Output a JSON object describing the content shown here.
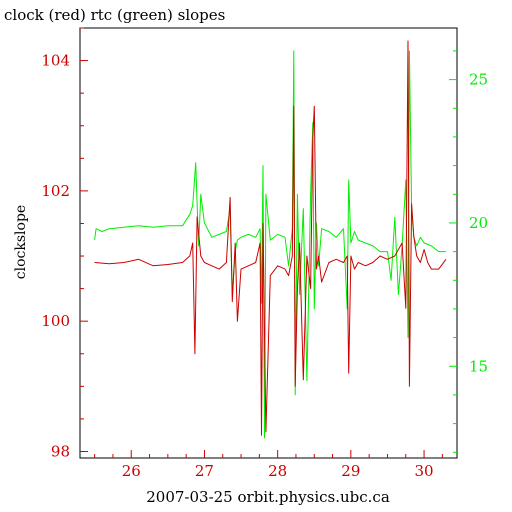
{
  "chart_data": {
    "type": "line",
    "title": "clock (red) rtc (green) slopes",
    "xlabel": "2007-03-25 orbit.physics.ubc.ca",
    "ylabel": "clockslope",
    "xlim": [
      25.3,
      30.45
    ],
    "ylim_left": [
      97.9,
      104.5
    ],
    "ylim_right": [
      11.8,
      26.8
    ],
    "x_ticks": [
      26,
      27,
      28,
      29,
      30
    ],
    "y_ticks_left": [
      98,
      100,
      102,
      104
    ],
    "y_ticks_right": [
      15,
      20,
      25
    ],
    "colors": {
      "clock": "#cc0000",
      "rtc": "#00ee00",
      "axes": "#000000"
    },
    "grid": false,
    "series": [
      {
        "name": "clock",
        "axis": "left",
        "color": "#cc0000",
        "x": [
          25.5,
          25.7,
          25.9,
          26.1,
          26.3,
          26.5,
          26.7,
          26.8,
          26.84,
          26.87,
          26.9,
          26.95,
          27.0,
          27.1,
          27.2,
          27.3,
          27.35,
          27.38,
          27.42,
          27.45,
          27.5,
          27.6,
          27.7,
          27.76,
          27.78,
          27.8,
          27.84,
          27.9,
          28.0,
          28.1,
          28.15,
          28.2,
          28.22,
          28.24,
          28.27,
          28.3,
          28.35,
          28.4,
          28.45,
          28.48,
          28.5,
          28.53,
          28.56,
          28.6,
          28.7,
          28.8,
          28.9,
          28.95,
          28.97,
          29.0,
          29.05,
          29.1,
          29.2,
          29.3,
          29.4,
          29.5,
          29.6,
          29.7,
          29.75,
          29.78,
          29.8,
          29.83,
          29.86,
          29.9,
          29.95,
          30.0,
          30.05,
          30.1,
          30.2,
          30.3
        ],
        "y": [
          100.9,
          100.88,
          100.9,
          100.95,
          100.85,
          100.87,
          100.9,
          101.0,
          101.2,
          99.5,
          101.6,
          101.0,
          100.9,
          100.85,
          100.8,
          100.9,
          101.9,
          100.3,
          101.2,
          100.0,
          100.8,
          100.85,
          100.9,
          101.2,
          98.25,
          101.5,
          98.3,
          100.7,
          100.85,
          100.8,
          100.7,
          101.0,
          103.3,
          99.0,
          100.5,
          101.2,
          99.1,
          101.0,
          100.5,
          102.8,
          103.3,
          100.8,
          101.0,
          100.6,
          100.9,
          100.95,
          100.9,
          101.0,
          99.2,
          101.0,
          100.8,
          100.9,
          100.85,
          100.9,
          101.0,
          100.95,
          101.0,
          101.2,
          100.2,
          104.3,
          99.0,
          101.8,
          101.3,
          101.0,
          100.9,
          101.1,
          100.9,
          100.8,
          100.8,
          100.95
        ]
      },
      {
        "name": "rtc",
        "axis": "right",
        "color": "#00ee00",
        "x": [
          25.5,
          25.52,
          25.6,
          25.7,
          25.9,
          26.1,
          26.3,
          26.5,
          26.7,
          26.8,
          26.84,
          26.88,
          26.92,
          26.95,
          27.0,
          27.1,
          27.2,
          27.3,
          27.35,
          27.38,
          27.42,
          27.45,
          27.5,
          27.6,
          27.7,
          27.76,
          27.78,
          27.8,
          27.82,
          27.84,
          27.9,
          28.0,
          28.1,
          28.15,
          28.2,
          28.22,
          28.24,
          28.27,
          28.3,
          28.35,
          28.4,
          28.45,
          28.48,
          28.5,
          28.53,
          28.56,
          28.6,
          28.7,
          28.8,
          28.9,
          28.95,
          28.97,
          29.0,
          29.05,
          29.1,
          29.2,
          29.3,
          29.4,
          29.5,
          29.55,
          29.6,
          29.65,
          29.7,
          29.75,
          29.78,
          29.8,
          29.83,
          29.86,
          29.9,
          29.95,
          30.0,
          30.1,
          30.2,
          30.3
        ],
        "y": [
          19.4,
          19.8,
          19.7,
          19.8,
          19.85,
          19.9,
          19.85,
          19.9,
          19.9,
          20.3,
          20.6,
          22.1,
          19.2,
          21.0,
          20.0,
          19.5,
          19.6,
          19.7,
          20.5,
          17.5,
          19.0,
          19.4,
          19.5,
          19.6,
          19.5,
          19.8,
          17.2,
          22.0,
          12.5,
          21.0,
          19.4,
          19.6,
          19.5,
          18.5,
          19.8,
          26.0,
          14.0,
          21.0,
          17.5,
          20.5,
          14.5,
          21.0,
          23.5,
          17.0,
          20.0,
          18.5,
          19.8,
          19.7,
          19.5,
          19.8,
          17.0,
          21.5,
          19.3,
          19.7,
          19.4,
          19.3,
          19.2,
          19.0,
          19.0,
          18.0,
          20.2,
          17.5,
          19.2,
          21.5,
          16.0,
          26.0,
          20.5,
          19.5,
          19.2,
          19.5,
          19.3,
          19.2,
          19.0,
          19.0
        ]
      }
    ]
  }
}
